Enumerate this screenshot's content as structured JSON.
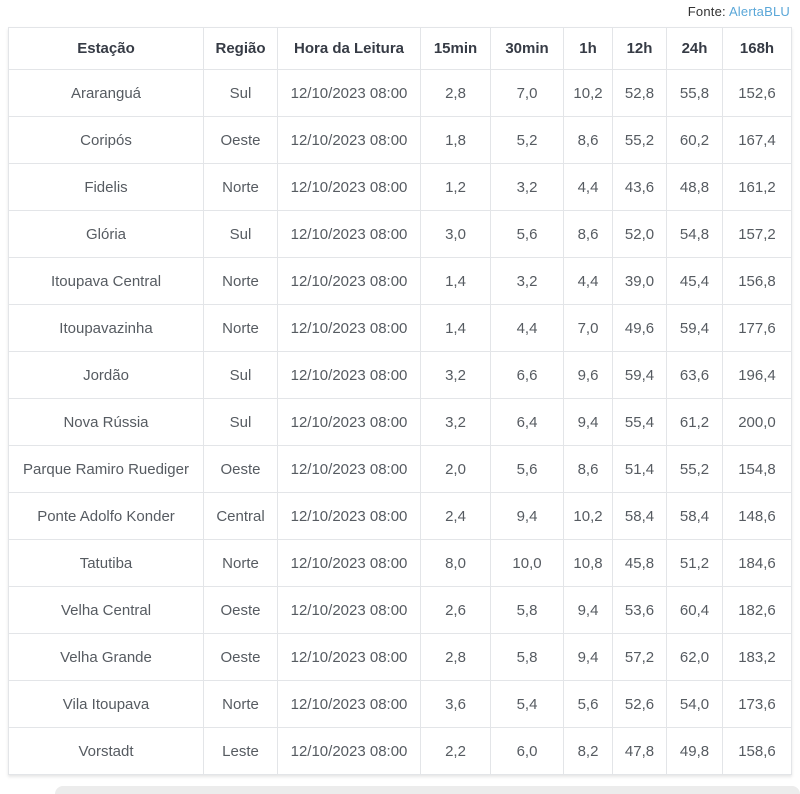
{
  "source": {
    "label": "Fonte:",
    "link_text": "AlertaBLU"
  },
  "chart_data": {
    "type": "table",
    "columns": [
      "Estação",
      "Região",
      "Hora da Leitura",
      "15min",
      "30min",
      "1h",
      "12h",
      "24h",
      "168h"
    ],
    "rows": [
      [
        "Araranguá",
        "Sul",
        "12/10/2023 08:00",
        "2,8",
        "7,0",
        "10,2",
        "52,8",
        "55,8",
        "152,6"
      ],
      [
        "Coripós",
        "Oeste",
        "12/10/2023 08:00",
        "1,8",
        "5,2",
        "8,6",
        "55,2",
        "60,2",
        "167,4"
      ],
      [
        "Fidelis",
        "Norte",
        "12/10/2023 08:00",
        "1,2",
        "3,2",
        "4,4",
        "43,6",
        "48,8",
        "161,2"
      ],
      [
        "Glória",
        "Sul",
        "12/10/2023 08:00",
        "3,0",
        "5,6",
        "8,6",
        "52,0",
        "54,8",
        "157,2"
      ],
      [
        "Itoupava Central",
        "Norte",
        "12/10/2023 08:00",
        "1,4",
        "3,2",
        "4,4",
        "39,0",
        "45,4",
        "156,8"
      ],
      [
        "Itoupavazinha",
        "Norte",
        "12/10/2023 08:00",
        "1,4",
        "4,4",
        "7,0",
        "49,6",
        "59,4",
        "177,6"
      ],
      [
        "Jordão",
        "Sul",
        "12/10/2023 08:00",
        "3,2",
        "6,6",
        "9,6",
        "59,4",
        "63,6",
        "196,4"
      ],
      [
        "Nova Rússia",
        "Sul",
        "12/10/2023 08:00",
        "3,2",
        "6,4",
        "9,4",
        "55,4",
        "61,2",
        "200,0"
      ],
      [
        "Parque Ramiro Ruediger",
        "Oeste",
        "12/10/2023 08:00",
        "2,0",
        "5,6",
        "8,6",
        "51,4",
        "55,2",
        "154,8"
      ],
      [
        "Ponte Adolfo Konder",
        "Central",
        "12/10/2023 08:00",
        "2,4",
        "9,4",
        "10,2",
        "58,4",
        "58,4",
        "148,6"
      ],
      [
        "Tatutiba",
        "Norte",
        "12/10/2023 08:00",
        "8,0",
        "10,0",
        "10,8",
        "45,8",
        "51,2",
        "184,6"
      ],
      [
        "Velha Central",
        "Oeste",
        "12/10/2023 08:00",
        "2,6",
        "5,8",
        "9,4",
        "53,6",
        "60,4",
        "182,6"
      ],
      [
        "Velha Grande",
        "Oeste",
        "12/10/2023 08:00",
        "2,8",
        "5,8",
        "9,4",
        "57,2",
        "62,0",
        "183,2"
      ],
      [
        "Vila Itoupava",
        "Norte",
        "12/10/2023 08:00",
        "3,6",
        "5,4",
        "5,6",
        "52,6",
        "54,0",
        "173,6"
      ],
      [
        "Vorstadt",
        "Leste",
        "12/10/2023 08:00",
        "2,2",
        "6,0",
        "8,2",
        "47,8",
        "49,8",
        "158,6"
      ]
    ]
  },
  "colors": {
    "link": "#5aa7d8",
    "header_text": "#363b45",
    "cell_text": "#565b61",
    "border": "#e3e5e8"
  }
}
